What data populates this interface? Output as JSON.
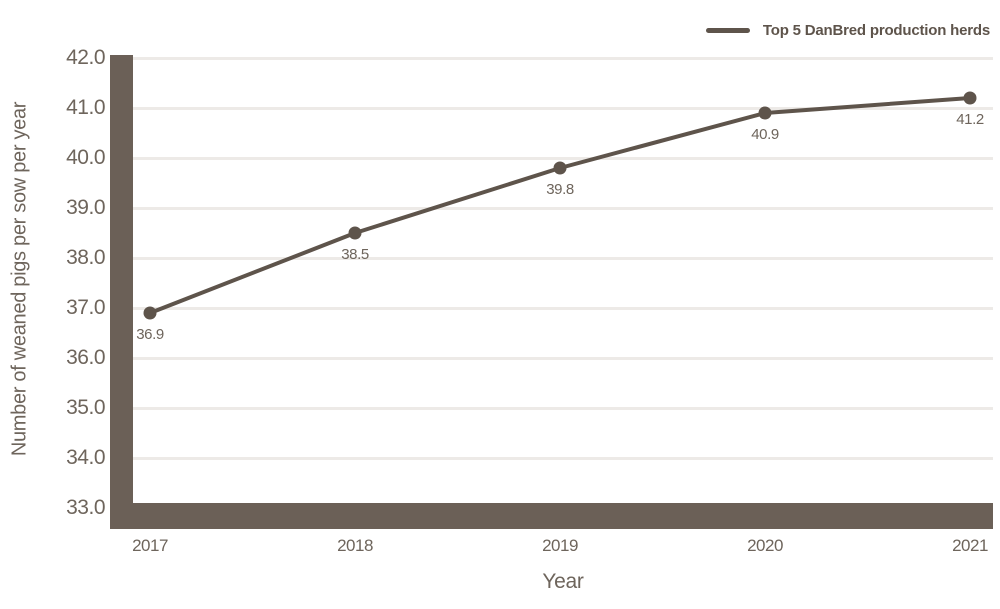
{
  "legend": {
    "label": "Top 5 DanBred production herds"
  },
  "y_axis": {
    "title": "Number of weaned pigs per sow per year",
    "ticks": [
      "42.0",
      "41.0",
      "40.0",
      "39.0",
      "38.0",
      "37.0",
      "36.0",
      "35.0",
      "34.0",
      "33.0"
    ]
  },
  "x_axis": {
    "title": "Year",
    "categories": [
      "2017",
      "2018",
      "2019",
      "2020",
      "2021"
    ]
  },
  "chart_data": {
    "type": "line",
    "title": "",
    "categories": [
      "2017",
      "2018",
      "2019",
      "2020",
      "2021"
    ],
    "series": [
      {
        "name": "Top 5 DanBred production herds",
        "values": [
          36.9,
          38.5,
          39.8,
          40.9,
          41.2
        ]
      }
    ],
    "point_labels": [
      "36.9",
      "38.5",
      "39.8",
      "40.9",
      "41.2"
    ],
    "xlabel": "Year",
    "ylabel": "Number of weaned pigs per sow per year",
    "ylim": [
      33.0,
      42.0
    ],
    "ytick_step": 1.0,
    "grid": "horizontal",
    "legend_position": "top-right",
    "marker": "circle"
  },
  "colors": {
    "line": "#5e544b",
    "axis_bar": "#6b6057",
    "text": "#6e655c",
    "gridline": "#edeae7",
    "background": "#ffffff"
  }
}
